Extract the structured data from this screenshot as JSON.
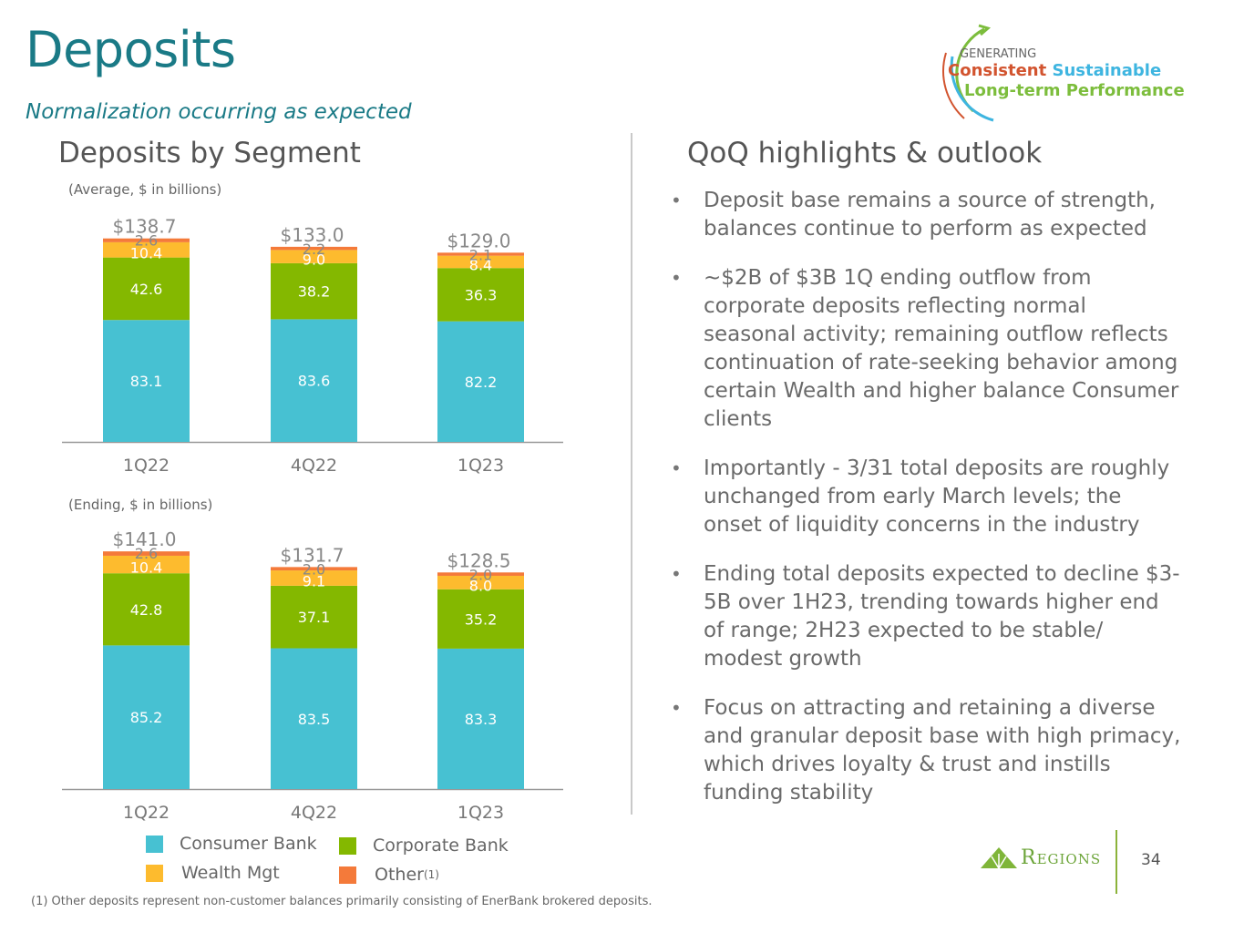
{
  "title": "Deposits",
  "subtitle": "Normalization occurring as expected",
  "left_heading": "Deposits by Segment",
  "right_heading": "QoQ highlights & outlook",
  "logo": {
    "line1": "GENERATING",
    "word1": "Consistent",
    "word2": "Sustainable",
    "line3": "Long-term Performance",
    "colors": {
      "consistent": "#d2542f",
      "sustainable": "#3eb5e0",
      "longterm": "#7cbd3c",
      "generating": "#666666"
    }
  },
  "brand": {
    "name": "Regions",
    "page_number": "34",
    "color": "#7fb539"
  },
  "colors": {
    "Consumer Bank": "#47c1d2",
    "Corporate Bank": "#84b800",
    "Wealth Mgt": "#fdbb2e",
    "Other": "#f47a3a",
    "title": "#1a7a86"
  },
  "legend": [
    {
      "label": "Consumer Bank",
      "key": "Consumer Bank"
    },
    {
      "label": "Corporate Bank",
      "key": "Corporate Bank"
    },
    {
      "label": "Wealth Mgt",
      "key": "Wealth Mgt"
    },
    {
      "label": "Other",
      "sup": "(1)",
      "key": "Other"
    }
  ],
  "chart_data": [
    {
      "type": "bar",
      "stacked": true,
      "title": "Deposits by Segment",
      "subtitle": "(Average, $ in billions)",
      "categories": [
        "1Q22",
        "4Q22",
        "1Q23"
      ],
      "series": [
        {
          "name": "Consumer Bank",
          "values": [
            83.1,
            83.6,
            82.2
          ]
        },
        {
          "name": "Corporate Bank",
          "values": [
            42.6,
            38.2,
            36.3
          ]
        },
        {
          "name": "Wealth Mgt",
          "values": [
            10.4,
            9.0,
            8.4
          ]
        },
        {
          "name": "Other",
          "values": [
            2.6,
            2.2,
            2.1
          ]
        }
      ],
      "totals": [
        "$138.7",
        "$133.0",
        "$129.0"
      ],
      "xlabel": "",
      "ylabel": "",
      "grid": false,
      "legend": "bottom"
    },
    {
      "type": "bar",
      "stacked": true,
      "title": "Deposits by Segment",
      "subtitle": "(Ending, $ in billions)",
      "categories": [
        "1Q22",
        "4Q22",
        "1Q23"
      ],
      "series": [
        {
          "name": "Consumer Bank",
          "values": [
            85.2,
            83.5,
            83.3
          ]
        },
        {
          "name": "Corporate Bank",
          "values": [
            42.8,
            37.1,
            35.2
          ]
        },
        {
          "name": "Wealth Mgt",
          "values": [
            10.4,
            9.1,
            8.0
          ]
        },
        {
          "name": "Other",
          "values": [
            2.6,
            2.0,
            2.0
          ]
        }
      ],
      "totals": [
        "$141.0",
        "$131.7",
        "$128.5"
      ],
      "xlabel": "",
      "ylabel": "",
      "grid": false,
      "legend": "bottom"
    }
  ],
  "bullets": [
    "Deposit base remains a source of strength, balances continue to perform as expected",
    "~$2B of $3B 1Q ending outflow from corporate deposits reflecting normal seasonal activity; remaining outflow reflects continuation of rate-seeking behavior among certain Wealth and higher balance Consumer clients",
    "Importantly - 3/31 total deposits are roughly unchanged from early March levels; the onset of liquidity concerns in the industry",
    "Ending total deposits expected to decline $3-5B over 1H23, trending towards higher end of range; 2H23 expected to be stable/ modest growth",
    "Focus on attracting and retaining a diverse and granular deposit base with high primacy, which drives loyalty & trust and instills funding stability"
  ],
  "footnote": "(1) Other deposits represent non-customer balances primarily consisting of EnerBank brokered deposits."
}
